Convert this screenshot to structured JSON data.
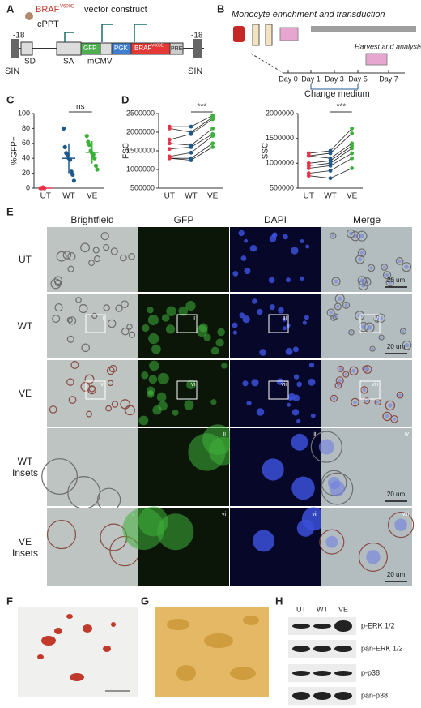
{
  "panel_letters": [
    "A",
    "B",
    "C",
    "D",
    "E",
    "F",
    "G",
    "H"
  ],
  "construct": {
    "braf": "BRAF",
    "mutation": "V600E",
    "title_rest": "vector construct",
    "ltr_left": "-18",
    "ltr_right": "-18",
    "cppt": "cPPT",
    "sin_left": "SIN",
    "sin_right": "SIN",
    "sd": "SD",
    "sa": "SA",
    "gfp": "GFP",
    "mcmv": "mCMV",
    "pgk": "PGK",
    "braf_box": "BRAF",
    "braf_box_sup": "V600E",
    "pre": "PRE"
  },
  "timeline": {
    "title": "Monocyte enrichment and transduction",
    "harvest": "Harvest and analysis",
    "days": [
      "Day 0",
      "Day 1",
      "Day 3",
      "Day 5",
      "Day 7"
    ],
    "change": "Change medium"
  },
  "chart_data": [
    {
      "type": "strip",
      "ylabel": "%GFP+",
      "categories": [
        "UT",
        "WT",
        "VE"
      ],
      "colors": [
        "#e8334a",
        "#1d5a8c",
        "#3db03a"
      ],
      "values": [
        [
          0,
          0,
          1,
          0
        ],
        [
          80,
          55,
          47,
          45,
          40,
          38,
          22,
          18,
          10
        ],
        [
          70,
          62,
          58,
          50,
          47,
          45,
          40,
          30,
          25
        ]
      ],
      "mean": [
        0,
        40,
        48
      ],
      "sd": [
        0,
        20,
        15
      ],
      "ylim": [
        0,
        100
      ],
      "yticks": [
        0,
        20,
        40,
        60,
        80,
        100
      ],
      "annotation": "ns"
    },
    {
      "type": "paired",
      "ylabel": "FSC",
      "categories": [
        "UT",
        "WT",
        "VE"
      ],
      "colors": [
        "#e8334a",
        "#1d5a8c",
        "#3db03a"
      ],
      "lines": [
        [
          2150000,
          2150000,
          2450000
        ],
        [
          2100000,
          2000000,
          2400000
        ],
        [
          1800000,
          1950000,
          2350000
        ],
        [
          1700000,
          1650000,
          2100000
        ],
        [
          1550000,
          1600000,
          1950000
        ],
        [
          1350000,
          1450000,
          1900000
        ],
        [
          1300000,
          1300000,
          1700000
        ],
        [
          1300000,
          1250000,
          1600000
        ]
      ],
      "ylim": [
        500000,
        2500000
      ],
      "yticks": [
        500000,
        1000000,
        1500000,
        2000000,
        2500000
      ],
      "annotation": "***"
    },
    {
      "type": "paired",
      "ylabel": "SSC",
      "categories": [
        "UT",
        "WT",
        "VE"
      ],
      "colors": [
        "#e8334a",
        "#1d5a8c",
        "#3db03a"
      ],
      "lines": [
        [
          1200000,
          1250000,
          1700000
        ],
        [
          1150000,
          1200000,
          1600000
        ],
        [
          1150000,
          1100000,
          1400000
        ],
        [
          1000000,
          1050000,
          1350000
        ],
        [
          950000,
          1000000,
          1300000
        ],
        [
          900000,
          950000,
          1200000
        ],
        [
          800000,
          850000,
          1100000
        ],
        [
          750000,
          700000,
          900000
        ]
      ],
      "ylim": [
        500000,
        2000000
      ],
      "yticks": [
        500000,
        1000000,
        1500000,
        2000000
      ],
      "annotation": "***"
    }
  ],
  "microscopy": {
    "columns": [
      "Brightfield",
      "GFP",
      "DAPI",
      "Merge"
    ],
    "rows": [
      "UT",
      "WT",
      "VE",
      "WT Insets",
      "VE Insets"
    ],
    "roi": [
      [
        "i",
        "ii",
        "iii",
        "iv"
      ],
      [
        "v",
        "vi",
        "vii",
        "viii"
      ]
    ],
    "scale_bar": "20 um"
  },
  "blot": {
    "lanes": [
      "UT",
      "WT",
      "VE"
    ],
    "bands": [
      "p-ERK 1/2",
      "pan-ERK 1/2",
      "p-p38",
      "pan-p38"
    ]
  }
}
